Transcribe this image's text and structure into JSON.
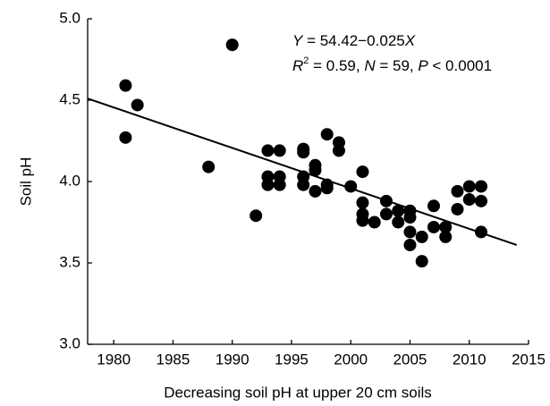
{
  "chart_data": {
    "type": "scatter",
    "x_label": "Decreasing soil pH at upper 20 cm soils",
    "y_label": "Soil pH",
    "xlim": [
      1977.8,
      2015
    ],
    "ylim": [
      3.0,
      5.0
    ],
    "xticks": [
      1980,
      1985,
      1990,
      1995,
      2000,
      2005,
      2010,
      2015
    ],
    "yticks": [
      {
        "value": 3.0,
        "label": "3.0"
      },
      {
        "value": 3.5,
        "label": "3.5"
      },
      {
        "value": 4.0,
        "label": "4.0"
      },
      {
        "value": 4.5,
        "label": "4.5"
      },
      {
        "value": 5.0,
        "label": "5.0"
      }
    ],
    "color": "#000000",
    "x": [
      1981,
      1981,
      1982,
      1988,
      1990,
      1992,
      1993,
      1993,
      1993,
      1994,
      1994,
      1994,
      1996,
      1996,
      1996,
      1996,
      1997,
      1997,
      1997,
      1998,
      1998,
      1998,
      1999,
      1999,
      2000,
      2001,
      2001,
      2001,
      2001,
      2002,
      2003,
      2003,
      2004,
      2004,
      2005,
      2005,
      2005,
      2005,
      2006,
      2006,
      2007,
      2007,
      2008,
      2008,
      2009,
      2009,
      2010,
      2010,
      2011,
      2011,
      2011
    ],
    "values": [
      4.59,
      4.27,
      4.47,
      4.09,
      4.84,
      3.79,
      4.19,
      4.03,
      3.98,
      4.19,
      4.03,
      3.98,
      4.2,
      4.18,
      4.03,
      3.98,
      4.1,
      4.07,
      3.94,
      4.29,
      3.98,
      3.96,
      4.24,
      4.19,
      3.97,
      4.06,
      3.87,
      3.8,
      3.76,
      3.75,
      3.88,
      3.8,
      3.82,
      3.75,
      3.82,
      3.78,
      3.69,
      3.61,
      3.66,
      3.51,
      3.85,
      3.72,
      3.72,
      3.66,
      3.94,
      3.83,
      3.97,
      3.89,
      3.97,
      3.88,
      3.69
    ],
    "trend_line": {
      "x": [
        1977.8,
        2014
      ],
      "y": [
        4.51,
        3.61
      ]
    },
    "annotations": [
      {
        "segments": [
          {
            "text": "Y",
            "italic": true
          },
          {
            "text": " = 54.42−0.025"
          },
          {
            "text": "X",
            "italic": true
          }
        ]
      },
      {
        "segments": [
          {
            "text": "R",
            "italic": true
          },
          {
            "text": "2",
            "sup": true
          },
          {
            "text": " = 0.59, "
          },
          {
            "text": "N",
            "italic": true
          },
          {
            "text": " = 59, "
          },
          {
            "text": "P",
            "italic": true
          },
          {
            "text": " < 0.0001"
          }
        ]
      }
    ]
  }
}
